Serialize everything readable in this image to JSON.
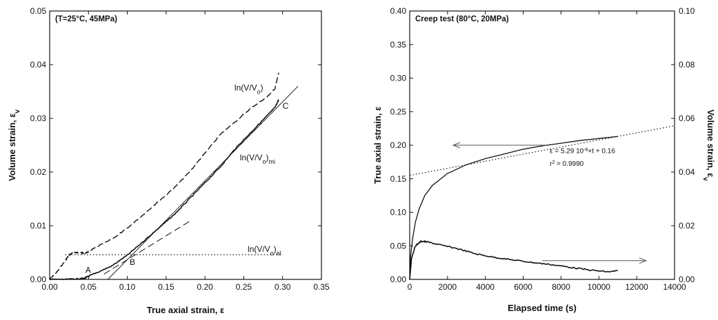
{
  "chart_data": [
    {
      "type": "line",
      "title": "(T=25°C, 45MPa)",
      "xlabel": "True axial strain, ε",
      "ylabel": "Volume strain, ε",
      "ylabel_subscript": "v",
      "xlim": [
        0,
        0.35
      ],
      "ylim": [
        0,
        0.05
      ],
      "x_ticks": [
        "0.00",
        "0.05",
        "0.10",
        "0.15",
        "0.20",
        "0.25",
        "0.30",
        "0.35"
      ],
      "y_ticks": [
        "0.00",
        "0.01",
        "0.02",
        "0.03",
        "0.04",
        "0.05"
      ],
      "series": [
        {
          "style": "dashed-noisy",
          "x": [
            0.0,
            0.01,
            0.02,
            0.025,
            0.03,
            0.035,
            0.04,
            0.045,
            0.05,
            0.06,
            0.08,
            0.1,
            0.12,
            0.14,
            0.16,
            0.18,
            0.2,
            0.22,
            0.24,
            0.26,
            0.28,
            0.29,
            0.295
          ],
          "y": [
            0.0,
            0.0015,
            0.0035,
            0.0045,
            0.005,
            0.005,
            0.005,
            0.0048,
            0.0052,
            0.006,
            0.0075,
            0.0095,
            0.012,
            0.0145,
            0.017,
            0.02,
            0.0235,
            0.027,
            0.0295,
            0.032,
            0.034,
            0.0355,
            0.0385
          ]
        },
        {
          "style": "solid-noisy",
          "x": [
            0.0,
            0.02,
            0.035,
            0.045,
            0.05,
            0.06,
            0.08,
            0.1,
            0.12,
            0.14,
            0.16,
            0.18,
            0.2,
            0.22,
            0.24,
            0.26,
            0.28,
            0.29,
            0.295
          ],
          "y": [
            0.0,
            0.0,
            0.0001,
            0.0002,
            0.0006,
            0.0012,
            0.0025,
            0.0045,
            0.007,
            0.0095,
            0.012,
            0.015,
            0.018,
            0.021,
            0.0245,
            0.0275,
            0.0305,
            0.032,
            0.0335
          ]
        },
        {
          "style": "thin-solid",
          "x": [
            0.075,
            0.32
          ],
          "y": [
            0.0,
            0.036
          ]
        },
        {
          "style": "long-dash",
          "x": [
            0.07,
            0.18
          ],
          "y": [
            0.001,
            0.0108
          ]
        },
        {
          "style": "dotted",
          "x": [
            0.02,
            0.3
          ],
          "y": [
            0.0046,
            0.0046
          ]
        }
      ],
      "annotations": [
        {
          "text": "ln(V/V",
          "sub": "o",
          "tail": ")",
          "tail_sub": "",
          "x": 0.238,
          "y": 0.0352
        },
        {
          "text": "ln(V/V",
          "sub": "o",
          "tail": ")",
          "tail_sub": "mi",
          "x": 0.245,
          "y": 0.0222
        },
        {
          "text": "ln(V/V",
          "sub": "o",
          "tail": ")",
          "tail_sub": "el",
          "x": 0.255,
          "y": 0.0051
        },
        {
          "text": "C",
          "x": 0.3,
          "y": 0.0318
        },
        {
          "text": "A",
          "x": 0.046,
          "y": 0.0012
        },
        {
          "text": "B",
          "x": 0.103,
          "y": 0.0027
        }
      ]
    },
    {
      "type": "line",
      "title": "Creep test (80°C, 20MPa)",
      "xlabel": "Elapsed time (s)",
      "ylabel": "True axial strain, ε",
      "y2label": "Volume strain, ε",
      "y2label_subscript": "v",
      "xlim": [
        0,
        14000
      ],
      "ylim": [
        0,
        0.4
      ],
      "y2lim": [
        0,
        0.1
      ],
      "x_ticks": [
        "0",
        "2000",
        "4000",
        "6000",
        "8000",
        "10000",
        "12000",
        "14000"
      ],
      "y_ticks": [
        "0.00",
        "0.05",
        "0.10",
        "0.15",
        "0.20",
        "0.25",
        "0.30",
        "0.35",
        "0.40"
      ],
      "y2_ticks": [
        "0.00",
        "0.02",
        "0.04",
        "0.06",
        "0.08",
        "0.10"
      ],
      "series": [
        {
          "style": "solid",
          "axis": "left",
          "x": [
            0,
            50,
            150,
            300,
            500,
            800,
            1200,
            2000,
            3000,
            4000,
            5000,
            6000,
            7000,
            8000,
            9000,
            10000,
            11000
          ],
          "y": [
            0.0,
            0.035,
            0.06,
            0.085,
            0.105,
            0.125,
            0.14,
            0.158,
            0.171,
            0.18,
            0.187,
            0.194,
            0.199,
            0.203,
            0.207,
            0.21,
            0.213
          ]
        },
        {
          "style": "dotted",
          "axis": "left",
          "x": [
            0,
            14000
          ],
          "y": [
            0.155,
            0.229
          ]
        },
        {
          "style": "solid-noisy",
          "axis": "right",
          "x": [
            0,
            100,
            300,
            600,
            900,
            1500,
            2500,
            3500,
            4500,
            5500,
            6500,
            7500,
            8500,
            9500,
            10500,
            11000
          ],
          "y": [
            0.0,
            0.008,
            0.0125,
            0.0142,
            0.014,
            0.013,
            0.0115,
            0.0095,
            0.0082,
            0.0072,
            0.0063,
            0.0055,
            0.0045,
            0.0035,
            0.0028,
            0.0032
          ]
        }
      ],
      "annotations": [
        {
          "text": "ε = 5.29 10",
          "sup": "-6",
          "tail": "×t + 0.16",
          "x": 7400,
          "y": 0.188
        },
        {
          "text": "r",
          "sup": "2",
          "tail": " = 0.9990",
          "x": 7400,
          "y": 0.169
        }
      ],
      "arrows": [
        {
          "direction": "left",
          "x_from": 7200,
          "x_to": 2300,
          "y": 0.2,
          "axis": "left"
        },
        {
          "direction": "right",
          "x_from": 7000,
          "x_to": 12500,
          "y": 0.007,
          "axis": "right"
        }
      ]
    }
  ]
}
